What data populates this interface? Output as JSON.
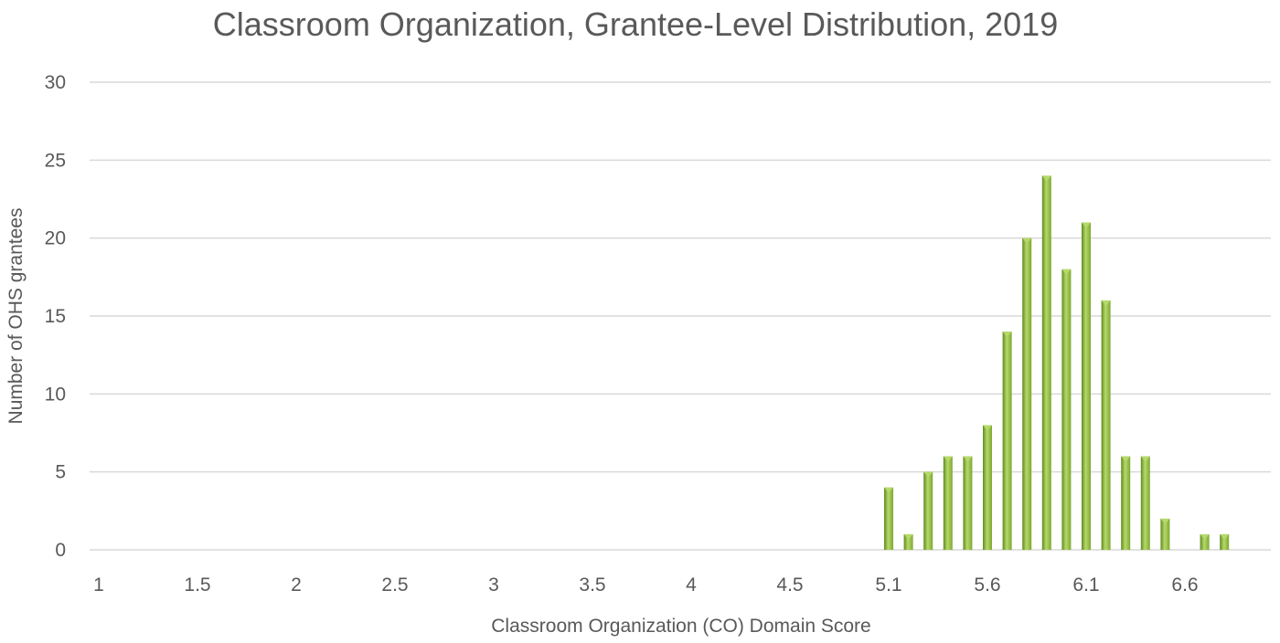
{
  "chart_data": {
    "type": "bar",
    "title": "Classroom Organization, Grantee-Level Distribution, 2019",
    "xlabel": "Classroom Organization (CO) Domain Score",
    "ylabel": "Number of OHS grantees",
    "ylim": [
      0,
      30
    ],
    "yticks": [
      "0",
      "5",
      "10",
      "15",
      "20",
      "25",
      "30"
    ],
    "xtick_labels": [
      "1",
      "1.5",
      "2",
      "2.5",
      "3",
      "3.5",
      "4",
      "4.5",
      "5.1",
      "5.6",
      "6.1",
      "6.6"
    ],
    "categories": [
      "1.0",
      "1.1",
      "1.2",
      "1.3",
      "1.4",
      "1.5",
      "1.6",
      "1.7",
      "1.8",
      "1.9",
      "2.0",
      "2.1",
      "2.2",
      "2.3",
      "2.4",
      "2.5",
      "2.6",
      "2.7",
      "2.8",
      "2.9",
      "3.0",
      "3.1",
      "3.2",
      "3.3",
      "3.4",
      "3.5",
      "3.6",
      "3.7",
      "3.8",
      "3.9",
      "4.0",
      "4.1",
      "4.2",
      "4.3",
      "4.4",
      "4.5",
      "4.6",
      "4.7",
      "4.8",
      "4.9",
      "5.0",
      "5.1",
      "5.2",
      "5.3",
      "5.4",
      "5.5",
      "5.6",
      "5.7",
      "5.8",
      "5.9",
      "6.0",
      "6.1",
      "6.2",
      "6.3",
      "6.4",
      "6.5",
      "6.6",
      "6.7",
      "6.8"
    ],
    "values": [
      0,
      0,
      0,
      0,
      0,
      0,
      0,
      0,
      0,
      0,
      0,
      0,
      0,
      0,
      0,
      0,
      0,
      0,
      0,
      0,
      0,
      0,
      0,
      0,
      0,
      0,
      0,
      0,
      0,
      0,
      0,
      0,
      0,
      0,
      0,
      0,
      0,
      0,
      0,
      0,
      4,
      1,
      5,
      6,
      6,
      8,
      14,
      20,
      24,
      18,
      21,
      16,
      6,
      6,
      2,
      0,
      1,
      1,
      0
    ],
    "grid": true,
    "bar_color": "#7da832",
    "bar_color_light": "#b6d96a",
    "bar_color_dark": "#5f8a1f",
    "grid_color": "#d9d9d9"
  }
}
